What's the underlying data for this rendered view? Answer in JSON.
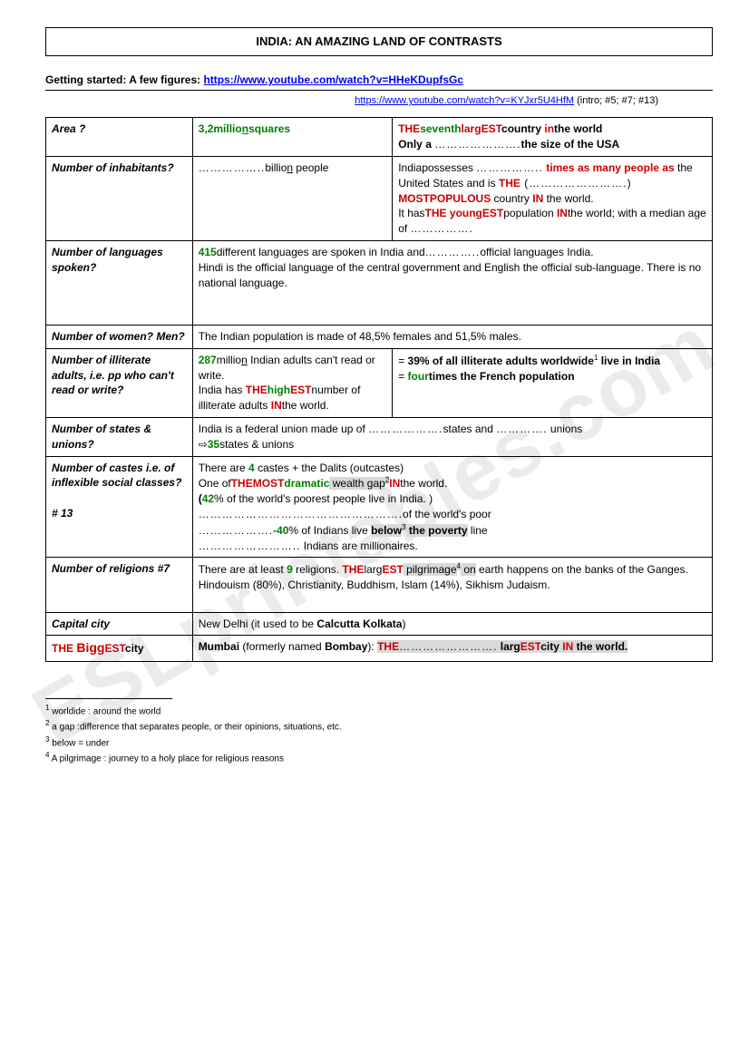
{
  "title": "INDIA: AN AMAZING LAND OF CONTRASTS",
  "getting_started_label": "Getting started: A few figures: ",
  "link1": "https://www.youtube.com/watch?v=HHeKDupfsGc",
  "link2": "https://www.youtube.com/watch?v=KYJxr5U4HfM",
  "link2_note": " (intro; #5; #7; #13)",
  "rows": {
    "area": {
      "label": "Area ?",
      "mid_num": "3,2",
      "mid_a": "millio",
      "mid_b": "n",
      "mid_c": "squares",
      "r_THE": "THE",
      "r_seventh": "seventh",
      "r_larg": "larg",
      "r_EST": "EST",
      "r_country": "country ",
      "r_in": "in",
      "r_world": "the world",
      "r_only": "Only a ",
      "r_dots": "………………….",
      "r_size": "the size of the USA"
    },
    "inhab": {
      "label": "Number of inhabitants?",
      "mid_dots": "……………..",
      "mid_billion": "billio",
      "mid_n": "n",
      "mid_people": " people",
      "r_india": "Indiapossesses ",
      "r_dots1": "……………..",
      "r_times": " times as many people as",
      "r_us": " the United States and is ",
      "r_THE": "THE",
      "r_paren_dots": " (…………………….) ",
      "r_MOSTPOP": "MOSTPOPULOUS",
      "r_country_in": " country ",
      "r_IN": "IN",
      "r_world2": " the world.",
      "r_ithas": "It has",
      "r_THE2": "THE ",
      "r_young": "young",
      "r_EST2": "EST",
      "r_pop": "population ",
      "r_IN2": "IN",
      "r_world3": "the world; with a median age of ",
      "r_dots2": "……………."
    },
    "lang": {
      "label": "Number of languages spoken?",
      "t1": "415",
      "t2": "different languages are spoken in India and",
      "t3": "…………..",
      "t4": "official languages India.",
      "t5": "Hindi is the official language of the central government and English the official sub-language. There is no national language."
    },
    "women": {
      "label": "Number of women? Men?",
      "t": "The Indian population is made of 48,5% females and 51,5% males."
    },
    "illit": {
      "label": "Number of illiterate adults, i.e. pp who can't read or write?",
      "m1": "287",
      "m2": "millio",
      "m2b": "n",
      "m3": " Indian adults can't read or write.",
      "m4": "India has ",
      "m_THE": "THE",
      "m_high": "high",
      "m_EST": "EST",
      "m5": "number of illiterate adults ",
      "m_IN": "IN",
      "m6": "the world.",
      "r1": "= ",
      "r1b": "39%",
      "r2": " of all illiterate adults worldwide",
      "r2sup": "1",
      "r3": " live in India",
      "r4": "= ",
      "r4b": "four",
      "r5": "times",
      "r6": " the French population"
    },
    "states": {
      "label": "Number of states & unions?",
      "t1": "India is a federal union made up of ",
      "d1": "……………….",
      "t2": "states and ",
      "d2": "………….",
      "t3": " unions",
      "arrow": "⇨",
      "t4": "35",
      "t5": "states & unions"
    },
    "castes": {
      "label": "Number of castes i.e. of inflexible social classes?",
      "label2": "# 13",
      "t1": "There are ",
      "t1n": "4",
      "t1b": " castes + the Dalits (outcastes)",
      "t2": "One of",
      "t2_THE": "THE",
      "t2_MOST": "MOST",
      "t2_dram": "dramatic",
      "t2_gap": " wealth gap",
      "t2_sup": "2",
      "t2_IN": "IN",
      "t2_world": "the world.",
      "t3o": "(",
      "t3n": "42",
      "t3": "% of the world's poorest people live in India. )",
      "d1": "…………………………………………….",
      "t4": "of the world's poor",
      "d2": "……………….",
      "t5n": "-40",
      "t5": "% of Indians live ",
      "t5b": "below",
      "t5sup": "3",
      "t5c": " the poverty",
      "t5d": " line",
      "d3": "……………………..",
      "t6": " Indians are millionaires."
    },
    "relig": {
      "label": "Number of religions #7",
      "t1": "There are at least ",
      "t1n": "9",
      "t1b": " religions. ",
      "t_THE": "THE",
      "t_larg": "larg",
      "t_EST": "EST",
      "t2": " pilgrimage",
      "t2sup": "4",
      "t3": " on",
      "t4": " earth happens on the banks of the Ganges.",
      "t5": "Hindouism (80%), Christianity, Buddhism, Islam (14%), Sikhism Judaism."
    },
    "capital": {
      "label": "Capital city",
      "t1": "New Delhi (it used to be ",
      "t2": "Calcutta Kolkata",
      "t3": ")"
    },
    "biggest": {
      "label_THE": "THE ",
      "label_Bigg": "Bigg",
      "label_EST": "EST",
      "label_city": "city",
      "t1": "Mumbai",
      "t2": " (formerly named ",
      "t3": "Bombay",
      "t4": "): ",
      "t_THE": "THE",
      "d1": "…………………….",
      "t_larg": " larg",
      "t_EST": "EST",
      "t_city": "city ",
      "t_IN": "IN",
      "t_world": " the world."
    }
  },
  "footnotes": {
    "f1": "worldide : around the world",
    "f2": "a gap :difference that separates people, or their opinions, situations, etc.",
    "f3": "below = under",
    "f4": "A pilgrimage : journey to a holy place for religious reasons"
  },
  "watermark": "ESLprintables.com"
}
